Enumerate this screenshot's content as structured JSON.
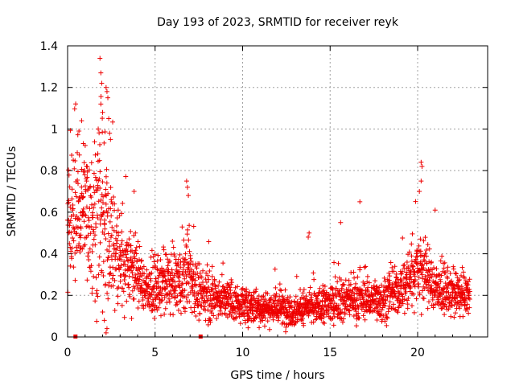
{
  "chart_data": {
    "type": "scatter",
    "title": "Day 193 of 2023, SRMTID for receiver reyk",
    "xlabel": "GPS time / hours",
    "ylabel": "SRMTID / TECUs",
    "xlim": [
      0,
      24
    ],
    "ylim": [
      0,
      1.4
    ],
    "xticks": [
      0,
      5,
      10,
      15,
      20
    ],
    "xtick_labels": [
      "0",
      "5",
      "10",
      "15",
      "20"
    ],
    "yticks": [
      0,
      0.2,
      0.4,
      0.6,
      0.8,
      1.0,
      1.2,
      1.4
    ],
    "ytick_labels": [
      "0",
      "0.2",
      "0.4",
      "0.6",
      "0.8",
      "1",
      "1.2",
      "1.4"
    ],
    "grid": true,
    "marker": "+",
    "color": "#ee0000",
    "data_range_hours": [
      0,
      23
    ],
    "envelope": {
      "description": "baseline and spread of the point cloud by GPS hour",
      "hours": [
        0,
        0.5,
        1.0,
        1.5,
        2.0,
        2.5,
        3.0,
        3.5,
        4.0,
        4.5,
        5.0,
        5.5,
        6.0,
        6.5,
        7.0,
        7.5,
        8.0,
        9.0,
        10.0,
        11.0,
        12.0,
        13.0,
        14.0,
        15.0,
        16.0,
        17.0,
        18.0,
        19.0,
        19.5,
        20.0,
        20.5,
        21.0,
        22.0,
        23.0
      ],
      "center": [
        0.55,
        0.6,
        0.62,
        0.58,
        0.55,
        0.45,
        0.38,
        0.36,
        0.3,
        0.22,
        0.22,
        0.25,
        0.26,
        0.27,
        0.3,
        0.2,
        0.2,
        0.18,
        0.15,
        0.14,
        0.14,
        0.13,
        0.14,
        0.16,
        0.18,
        0.18,
        0.18,
        0.22,
        0.28,
        0.35,
        0.3,
        0.23,
        0.2,
        0.2
      ],
      "spread": [
        0.18,
        0.2,
        0.2,
        0.22,
        0.25,
        0.2,
        0.16,
        0.14,
        0.1,
        0.07,
        0.08,
        0.08,
        0.09,
        0.1,
        0.12,
        0.07,
        0.07,
        0.06,
        0.05,
        0.05,
        0.05,
        0.05,
        0.05,
        0.06,
        0.06,
        0.06,
        0.06,
        0.07,
        0.1,
        0.12,
        0.1,
        0.07,
        0.06,
        0.06
      ]
    },
    "spikes": [
      {
        "x": 1.85,
        "y": 1.34
      },
      {
        "x": 1.9,
        "y": 1.27
      },
      {
        "x": 1.95,
        "y": 1.22
      },
      {
        "x": 2.2,
        "y": 1.2
      },
      {
        "x": 2.25,
        "y": 1.18
      },
      {
        "x": 2.3,
        "y": 1.15
      },
      {
        "x": 1.9,
        "y": 1.12
      },
      {
        "x": 2.0,
        "y": 1.08
      },
      {
        "x": 2.35,
        "y": 1.05
      },
      {
        "x": 0.8,
        "y": 1.04
      },
      {
        "x": 0.65,
        "y": 0.99
      },
      {
        "x": 1.75,
        "y": 1.0
      },
      {
        "x": 2.4,
        "y": 0.98
      },
      {
        "x": 2.45,
        "y": 0.95
      },
      {
        "x": 0.9,
        "y": 0.93
      },
      {
        "x": 3.8,
        "y": 0.7
      },
      {
        "x": 6.8,
        "y": 0.75
      },
      {
        "x": 6.85,
        "y": 0.72
      },
      {
        "x": 6.9,
        "y": 0.68
      },
      {
        "x": 20.2,
        "y": 0.84
      },
      {
        "x": 20.25,
        "y": 0.82
      },
      {
        "x": 20.2,
        "y": 0.75
      },
      {
        "x": 20.1,
        "y": 0.7
      },
      {
        "x": 16.7,
        "y": 0.65
      },
      {
        "x": 21.0,
        "y": 0.61
      },
      {
        "x": 15.6,
        "y": 0.55
      },
      {
        "x": 13.8,
        "y": 0.5
      },
      {
        "x": 13.75,
        "y": 0.48
      },
      {
        "x": 2.2,
        "y": 0.02
      },
      {
        "x": 2.25,
        "y": 0.04
      },
      {
        "x": 2.1,
        "y": 0.08
      },
      {
        "x": 2.0,
        "y": 0.12
      }
    ],
    "gap_markers": [
      {
        "x": 0.45,
        "y": 0
      },
      {
        "x": 7.6,
        "y": 0
      }
    ]
  }
}
